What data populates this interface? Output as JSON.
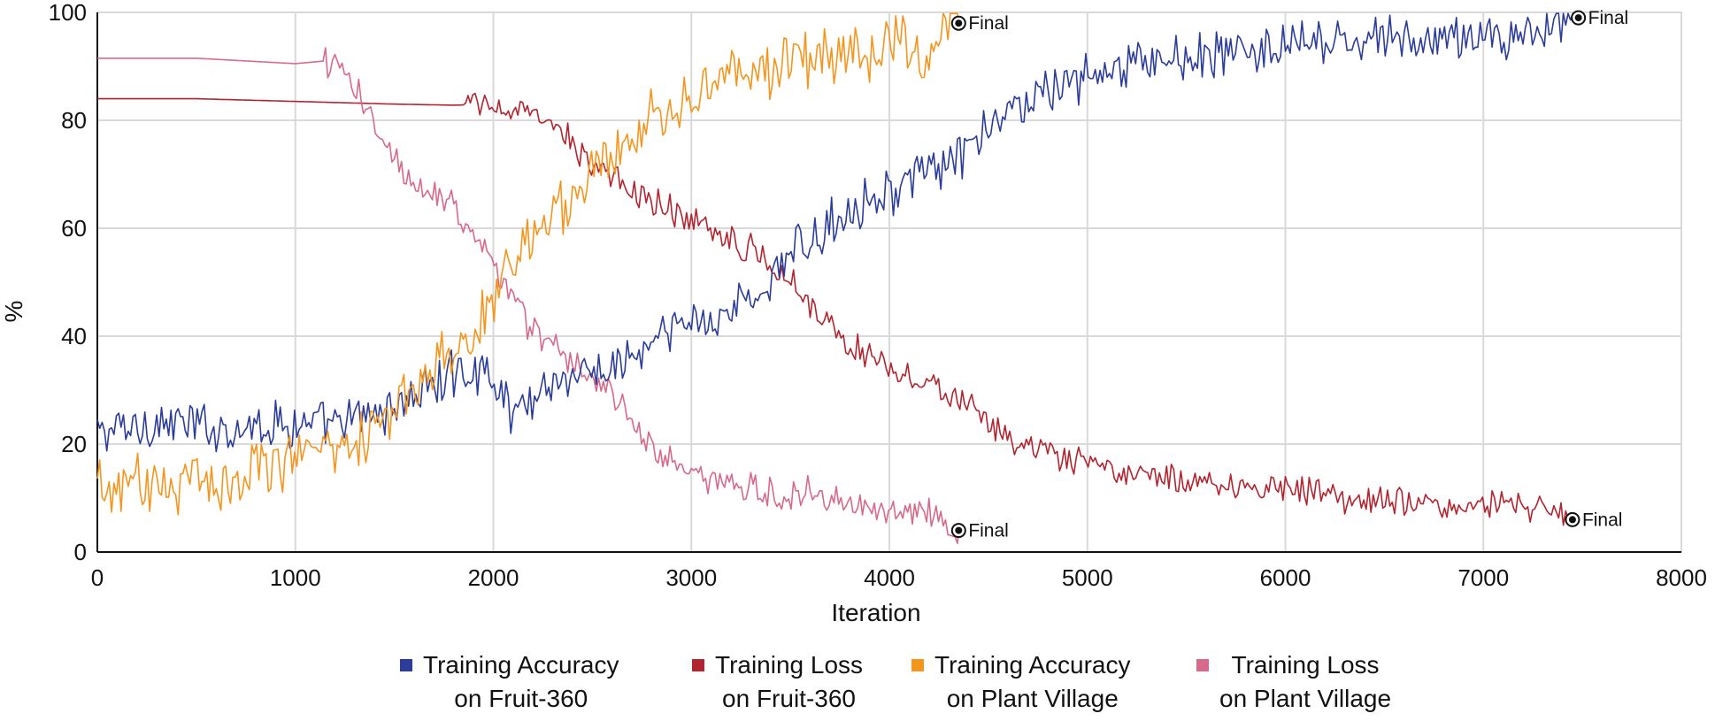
{
  "chart_data": {
    "type": "line",
    "xlabel": "Iteration",
    "ylabel": "%",
    "xlim": [
      0,
      8000
    ],
    "ylim": [
      0,
      100
    ],
    "xticks": [
      "0",
      "1000",
      "2000",
      "3000",
      "4000",
      "5000",
      "6000",
      "7000",
      "8000"
    ],
    "yticks": [
      "0",
      "20",
      "40",
      "60",
      "80",
      "100"
    ],
    "grid": true,
    "legend_position": "bottom",
    "series": [
      {
        "name": "Training Accuracy on Fruit-360",
        "legend_lines": [
          "Training Accuracy",
          "on Fruit-360"
        ],
        "color": "#2b3d9a",
        "end": [
          7480,
          99
        ],
        "final_label": "Final",
        "keypoints": [
          [
            0,
            22
          ],
          [
            300,
            24
          ],
          [
            600,
            23
          ],
          [
            900,
            24
          ],
          [
            1200,
            23
          ],
          [
            1500,
            27
          ],
          [
            1800,
            33
          ],
          [
            1950,
            34
          ],
          [
            2100,
            26
          ],
          [
            2300,
            32
          ],
          [
            2500,
            33
          ],
          [
            2650,
            35
          ],
          [
            2800,
            38
          ],
          [
            2950,
            42
          ],
          [
            3150,
            44
          ],
          [
            3350,
            48
          ],
          [
            3500,
            55
          ],
          [
            3650,
            59
          ],
          [
            3800,
            64
          ],
          [
            4000,
            67
          ],
          [
            4200,
            70
          ],
          [
            4400,
            74
          ],
          [
            4550,
            80
          ],
          [
            4700,
            84
          ],
          [
            4900,
            87
          ],
          [
            5100,
            89
          ],
          [
            5300,
            91
          ],
          [
            5600,
            92
          ],
          [
            5900,
            93
          ],
          [
            6200,
            94
          ],
          [
            6500,
            95
          ],
          [
            6800,
            95
          ],
          [
            7100,
            96
          ],
          [
            7300,
            96
          ],
          [
            7480,
            99
          ]
        ],
        "noise": 3.5
      },
      {
        "name": "Training Loss on Fruit-360",
        "legend_lines": [
          "Training Loss",
          "on Fruit-360"
        ],
        "color": "#b22530",
        "end": [
          7450,
          6
        ],
        "final_label": "Final",
        "keypoints": [
          [
            0,
            84
          ],
          [
            500,
            84
          ],
          [
            1000,
            83.5
          ],
          [
            1500,
            83
          ],
          [
            1800,
            82.8
          ],
          [
            2000,
            83
          ],
          [
            2150,
            81
          ],
          [
            2300,
            79
          ],
          [
            2450,
            74
          ],
          [
            2600,
            69
          ],
          [
            2800,
            65
          ],
          [
            3000,
            62
          ],
          [
            3200,
            58
          ],
          [
            3350,
            55
          ],
          [
            3500,
            51
          ],
          [
            3650,
            44
          ],
          [
            3800,
            38
          ],
          [
            4000,
            35
          ],
          [
            4200,
            31
          ],
          [
            4400,
            27
          ],
          [
            4550,
            22
          ],
          [
            4700,
            19
          ],
          [
            4900,
            17
          ],
          [
            5100,
            15
          ],
          [
            5300,
            14
          ],
          [
            5600,
            13
          ],
          [
            5900,
            12
          ],
          [
            6100,
            12
          ],
          [
            6300,
            10
          ],
          [
            6600,
            9
          ],
          [
            6900,
            9
          ],
          [
            7200,
            9
          ],
          [
            7450,
            6
          ]
        ],
        "noise": 2.2,
        "flat_until": 1850
      },
      {
        "name": "Training Accuracy on Plant Village",
        "legend_lines": [
          "Training Accuracy",
          "on Plant Village"
        ],
        "color": "#f4961e",
        "end": [
          4350,
          98
        ],
        "final_label": "Final",
        "keypoints": [
          [
            0,
            11
          ],
          [
            300,
            13
          ],
          [
            600,
            13
          ],
          [
            900,
            17
          ],
          [
            1100,
            20
          ],
          [
            1300,
            21
          ],
          [
            1500,
            26
          ],
          [
            1700,
            33
          ],
          [
            1900,
            40
          ],
          [
            2000,
            48
          ],
          [
            2150,
            57
          ],
          [
            2300,
            63
          ],
          [
            2450,
            69
          ],
          [
            2600,
            74
          ],
          [
            2800,
            80
          ],
          [
            3000,
            85
          ],
          [
            3200,
            88
          ],
          [
            3400,
            90
          ],
          [
            3600,
            91
          ],
          [
            3800,
            92
          ],
          [
            4000,
            93
          ],
          [
            4200,
            93
          ],
          [
            4350,
            98
          ]
        ],
        "noise": 4.5
      },
      {
        "name": "Training Loss on Plant Village",
        "legend_lines": [
          "Training Loss",
          "on Plant Village"
        ],
        "color": "#d76a8a",
        "end": [
          4350,
          4
        ],
        "final_label": "Final",
        "keypoints": [
          [
            0,
            91.5
          ],
          [
            500,
            91.5
          ],
          [
            1000,
            90.5
          ],
          [
            1150,
            91
          ],
          [
            1250,
            89
          ],
          [
            1350,
            82
          ],
          [
            1450,
            75
          ],
          [
            1600,
            69
          ],
          [
            1800,
            64
          ],
          [
            1950,
            56
          ],
          [
            2100,
            48
          ],
          [
            2200,
            41
          ],
          [
            2350,
            37
          ],
          [
            2500,
            33
          ],
          [
            2650,
            27
          ],
          [
            2800,
            19
          ],
          [
            3000,
            14
          ],
          [
            3200,
            12
          ],
          [
            3400,
            11
          ],
          [
            3600,
            11
          ],
          [
            3800,
            9
          ],
          [
            4000,
            8
          ],
          [
            4200,
            8
          ],
          [
            4350,
            4
          ]
        ],
        "noise": 2.5,
        "flat_until": 1150
      }
    ]
  }
}
